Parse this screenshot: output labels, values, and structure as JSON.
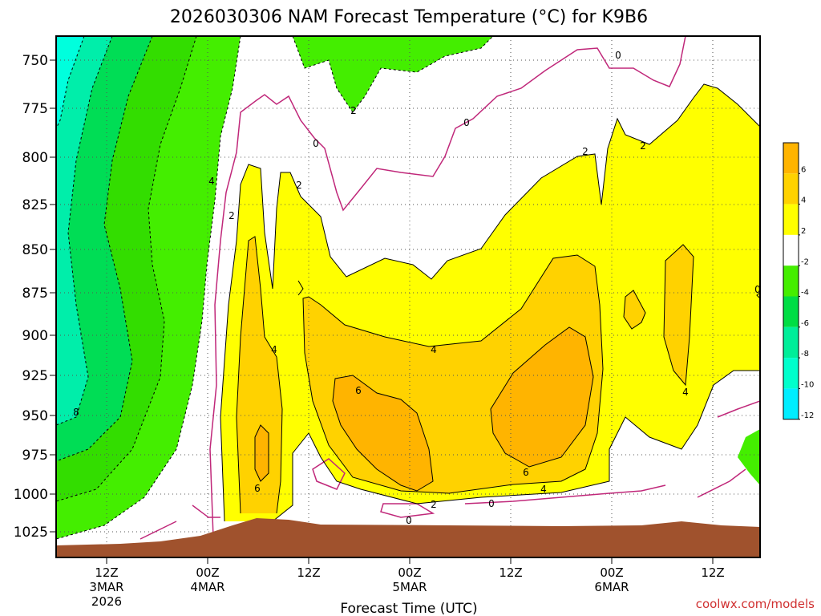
{
  "chart_data": {
    "type": "heatmap",
    "title": "2026030306 NAM Forecast Temperature (°C) for K9B6",
    "xlabel": "Forecast Time (UTC)",
    "ylabel": "",
    "credit": "coolwx.com/models",
    "y_ticks": [
      "750",
      "775",
      "800",
      "825",
      "850",
      "875",
      "900",
      "925",
      "950",
      "975",
      "1000",
      "1025"
    ],
    "x_ticks": [
      {
        "line1": "12Z",
        "line2": "3MAR",
        "line3": "2026"
      },
      {
        "line1": "00Z",
        "line2": "4MAR",
        "line3": ""
      },
      {
        "line1": "12Z",
        "line2": "",
        "line3": ""
      },
      {
        "line1": "00Z",
        "line2": "5MAR",
        "line3": ""
      },
      {
        "line1": "12Z",
        "line2": "",
        "line3": ""
      },
      {
        "line1": "00Z",
        "line2": "6MAR",
        "line3": ""
      },
      {
        "line1": "12Z",
        "line2": "",
        "line3": ""
      }
    ],
    "colorbar": {
      "levels": [
        "6",
        "4",
        "2",
        "-2",
        "-4",
        "-6",
        "-8",
        "-10",
        "-12"
      ],
      "colors": [
        "#ffb400",
        "#ffd200",
        "#ffff00",
        "#ffffff",
        "#44ee00",
        "#00dd44",
        "#00ee99",
        "#00ffcc",
        "#00eeff"
      ]
    },
    "contour_labels": [
      "8",
      "4",
      "2",
      "2",
      "0",
      "2",
      "0",
      "0",
      "2",
      "2",
      "0",
      "4",
      "4",
      "6",
      "6",
      "4",
      "6",
      "4",
      "2",
      "0",
      "0"
    ],
    "colors": {
      "warm6": "#ffb400",
      "warm4": "#ffd200",
      "warm2": "#ffff00",
      "cold2": "#44ee00",
      "cold4": "#33dd00",
      "cold6": "#00dd55",
      "cold8": "#00eeaa",
      "cold10": "#00ffdd",
      "ground": "#a0522d",
      "zero_line": "#c0287a",
      "credit": "#d03030"
    }
  }
}
